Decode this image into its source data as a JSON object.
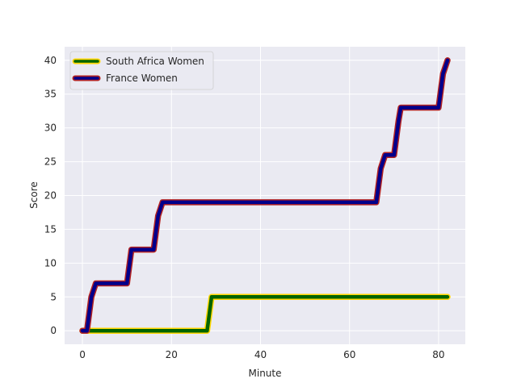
{
  "chart_data": {
    "type": "line",
    "title": "",
    "xlabel": "Minute",
    "ylabel": "Score",
    "xlim": [
      -4,
      86
    ],
    "ylim": [
      -2,
      42
    ],
    "x_ticks": [
      0,
      20,
      40,
      60,
      80
    ],
    "y_ticks": [
      0,
      5,
      10,
      15,
      20,
      25,
      30,
      35,
      40
    ],
    "grid": true,
    "legend_position": "top-left",
    "series": [
      {
        "name": "South Africa Women",
        "line_color": "#006400",
        "edge_color": "#FFD700",
        "points": [
          [
            0,
            0
          ],
          [
            28,
            0
          ],
          [
            29,
            5
          ],
          [
            82,
            5
          ]
        ]
      },
      {
        "name": "France Women",
        "line_color": "#00008B",
        "edge_color": "#B22222",
        "points": [
          [
            0,
            0
          ],
          [
            1,
            0
          ],
          [
            2,
            5
          ],
          [
            3,
            7
          ],
          [
            10,
            7
          ],
          [
            11,
            12
          ],
          [
            16,
            12
          ],
          [
            17,
            17
          ],
          [
            18,
            19
          ],
          [
            66,
            19
          ],
          [
            67,
            24
          ],
          [
            68,
            26
          ],
          [
            70,
            26
          ],
          [
            71,
            31
          ],
          [
            71.5,
            33
          ],
          [
            80,
            33
          ],
          [
            81,
            38
          ],
          [
            82,
            40
          ]
        ]
      }
    ]
  }
}
